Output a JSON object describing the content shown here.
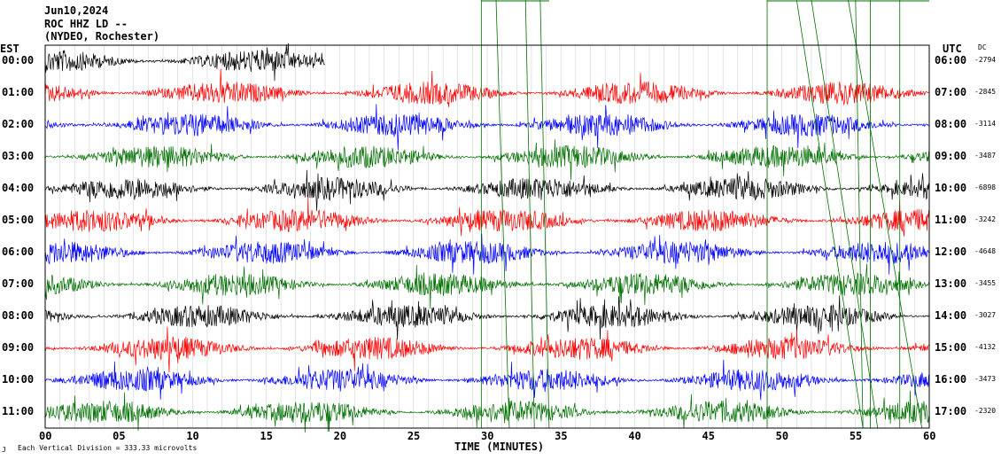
{
  "header": {
    "date": "Jun10,2024",
    "station": "ROC HHZ LD --",
    "location": "(NYDEO, Rochester)"
  },
  "left_zone": "EST",
  "right_zone": "UTC",
  "dc_header": "DC",
  "footer": {
    "icon_text": "J",
    "note": "Each Vertical Division = 333.33 microvolts"
  },
  "colors": {
    "cycle": [
      "#000000",
      "#ff0000",
      "#0000ff",
      "#007000"
    ],
    "marker": "#007000"
  },
  "chart_data": {
    "type": "line",
    "title": "",
    "xlabel": "TIME (MINUTES)",
    "ylabel": "",
    "xlim": [
      0,
      60
    ],
    "x_ticks": [
      "00",
      "05",
      "10",
      "15",
      "20",
      "25",
      "30",
      "35",
      "40",
      "45",
      "50",
      "55",
      "60"
    ],
    "grid": true,
    "series": [
      {
        "est": "00:00",
        "utc": "06:00",
        "dc": "-2794",
        "color": "#000000",
        "end_minute": 19
      },
      {
        "est": "01:00",
        "utc": "07:00",
        "dc": "-2845",
        "color": "#ff0000"
      },
      {
        "est": "02:00",
        "utc": "08:00",
        "dc": "-3114",
        "color": "#0000ff"
      },
      {
        "est": "03:00",
        "utc": "09:00",
        "dc": "-3487",
        "color": "#007000"
      },
      {
        "est": "04:00",
        "utc": "10:00",
        "dc": "-6898",
        "color": "#000000"
      },
      {
        "est": "05:00",
        "utc": "11:00",
        "dc": "-3242",
        "color": "#ff0000"
      },
      {
        "est": "06:00",
        "utc": "12:00",
        "dc": "-4648",
        "color": "#0000ff"
      },
      {
        "est": "07:00",
        "utc": "13:00",
        "dc": "-3455",
        "color": "#007000"
      },
      {
        "est": "08:00",
        "utc": "14:00",
        "dc": "-3027",
        "color": "#000000"
      },
      {
        "est": "09:00",
        "utc": "15:00",
        "dc": "-4132",
        "color": "#ff0000"
      },
      {
        "est": "10:00",
        "utc": "16:00",
        "dc": "-3473",
        "color": "#0000ff"
      },
      {
        "est": "11:00",
        "utc": "17:00",
        "dc": "-2320",
        "color": "#007000"
      }
    ]
  }
}
